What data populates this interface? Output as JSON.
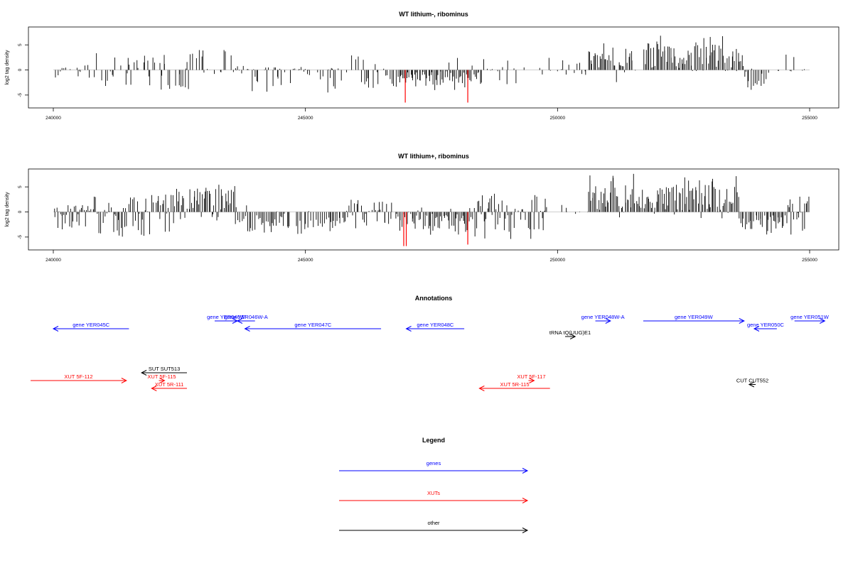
{
  "chart_data": [
    {
      "type": "bar",
      "title": "WT lithium-, ribominus",
      "xlabel": "",
      "ylabel": "log2 tag density",
      "xlim": [
        240000,
        255000
      ],
      "ylim": [
        -7,
        8
      ],
      "x_ticks": [
        240000,
        245000,
        250000,
        255000
      ],
      "y_ticks": [
        -5,
        0,
        5
      ],
      "grid": false,
      "colors": {
        "bars": "#000000",
        "highlight": "#ff0000",
        "baseline": "#bebebe"
      },
      "segments": [
        {
          "start": 240000,
          "end": 240600,
          "mode": "sparse",
          "max_pos": 0.5,
          "max_neg": 1.5,
          "density": 0.4
        },
        {
          "start": 240600,
          "end": 241500,
          "mode": "sparse",
          "max_pos": 3.5,
          "max_neg": 3.2,
          "density": 0.5
        },
        {
          "start": 241500,
          "end": 242700,
          "mode": "sparse",
          "max_pos": 3.2,
          "max_neg": 4.2,
          "density": 0.55
        },
        {
          "start": 242700,
          "end": 243800,
          "mode": "sparse",
          "max_pos": 4.0,
          "max_neg": 1.0,
          "density": 0.6
        },
        {
          "start": 243800,
          "end": 245800,
          "mode": "sparse",
          "max_pos": 0.6,
          "max_neg": 4.5,
          "density": 0.5
        },
        {
          "start": 245800,
          "end": 246800,
          "mode": "sparse",
          "max_pos": 3.0,
          "max_neg": 3.8,
          "density": 0.5
        },
        {
          "start": 246800,
          "end": 248500,
          "mode": "dense_neg",
          "max_pos": 2.5,
          "max_neg": 4.5,
          "density": 1.0
        },
        {
          "start": 248500,
          "end": 249300,
          "mode": "sparse",
          "max_pos": 2.5,
          "max_neg": 3.0,
          "density": 0.45
        },
        {
          "start": 249300,
          "end": 250600,
          "mode": "sparse",
          "max_pos": 2.5,
          "max_neg": 1.0,
          "density": 0.2
        },
        {
          "start": 250600,
          "end": 251500,
          "mode": "dense_pos",
          "max_pos": 6.0,
          "max_neg": 2.5,
          "density": 0.9
        },
        {
          "start": 251500,
          "end": 251700,
          "mode": "sparse",
          "max_pos": 1.5,
          "max_neg": 3.0,
          "density": 0.3
        },
        {
          "start": 251700,
          "end": 253700,
          "mode": "dense_pos",
          "max_pos": 7.5,
          "max_neg": 0.3,
          "density": 1.0
        },
        {
          "start": 253700,
          "end": 254200,
          "mode": "dense_neg",
          "max_pos": 0.3,
          "max_neg": 4.5,
          "density": 0.8
        },
        {
          "start": 254200,
          "end": 254800,
          "mode": "sparse",
          "max_pos": 3.5,
          "max_neg": 0.5,
          "density": 0.25
        },
        {
          "start": 254800,
          "end": 255000,
          "mode": "sparse",
          "max_pos": 1.0,
          "max_neg": 0.3,
          "density": 0.2
        }
      ],
      "highlight_bars": [
        {
          "x": 246980,
          "y": -6.5
        },
        {
          "x": 248220,
          "y": -6.5
        }
      ]
    },
    {
      "type": "bar",
      "title": "WT lithium+, ribominus",
      "xlabel": "",
      "ylabel": "log2 tag density",
      "xlim": [
        240000,
        255000
      ],
      "ylim": [
        -7,
        8
      ],
      "x_ticks": [
        240000,
        245000,
        250000,
        255000
      ],
      "y_ticks": [
        -5,
        0,
        5
      ],
      "grid": false,
      "colors": {
        "bars": "#000000",
        "highlight": "#ff0000",
        "baseline": "#bebebe"
      },
      "segments": [
        {
          "start": 240000,
          "end": 240800,
          "mode": "mixed",
          "max_pos": 1.5,
          "max_neg": 3.5,
          "density": 0.9
        },
        {
          "start": 240800,
          "end": 242400,
          "mode": "mixed",
          "max_pos": 3.5,
          "max_neg": 5.0,
          "density": 0.9
        },
        {
          "start": 242400,
          "end": 243600,
          "mode": "dense_pos",
          "max_pos": 6.5,
          "max_neg": 2.0,
          "density": 1.0
        },
        {
          "start": 243600,
          "end": 245800,
          "mode": "dense_neg",
          "max_pos": 1.5,
          "max_neg": 5.0,
          "density": 0.85
        },
        {
          "start": 245800,
          "end": 246800,
          "mode": "mixed",
          "max_pos": 2.5,
          "max_neg": 4.0,
          "density": 0.7
        },
        {
          "start": 246800,
          "end": 248400,
          "mode": "dense_neg",
          "max_pos": 1.5,
          "max_neg": 5.5,
          "density": 1.0
        },
        {
          "start": 248400,
          "end": 249800,
          "mode": "mixed",
          "max_pos": 4.0,
          "max_neg": 5.5,
          "density": 0.95
        },
        {
          "start": 249800,
          "end": 250600,
          "mode": "sparse",
          "max_pos": 1.5,
          "max_neg": 0.5,
          "density": 0.2
        },
        {
          "start": 250600,
          "end": 253600,
          "mode": "dense_pos",
          "max_pos": 8.0,
          "max_neg": 2.5,
          "density": 1.0
        },
        {
          "start": 253600,
          "end": 254500,
          "mode": "dense_neg",
          "max_pos": 1.0,
          "max_neg": 5.0,
          "density": 0.9
        },
        {
          "start": 254500,
          "end": 255000,
          "mode": "mixed",
          "max_pos": 3.5,
          "max_neg": 5.5,
          "density": 0.9
        }
      ],
      "highlight_bars": [
        {
          "x": 246950,
          "y": -6.8
        },
        {
          "x": 247000,
          "y": -6.8
        },
        {
          "x": 248220,
          "y": -6.5
        }
      ]
    }
  ],
  "annotations": {
    "title": "Annotations",
    "colors": {
      "genes": "#0000ff",
      "XUTs": "#ff0000",
      "other": "#000000"
    },
    "features": [
      {
        "label": "gene YER045C",
        "type": "genes",
        "start": 240000,
        "end": 241500,
        "strand": "-",
        "row": 1
      },
      {
        "label": "gene YER046W",
        "type": "genes",
        "start": 243200,
        "end": 243650,
        "strand": "+",
        "row": 0
      },
      {
        "label": "gene YER046W-A",
        "type": "genes",
        "start": 243650,
        "end": 244000,
        "strand": "-",
        "row": 0
      },
      {
        "label": "gene YER047C",
        "type": "genes",
        "start": 243800,
        "end": 246500,
        "strand": "-",
        "row": 1
      },
      {
        "label": "gene YER048C",
        "type": "genes",
        "start": 247000,
        "end": 248150,
        "strand": "-",
        "row": 1
      },
      {
        "label": "tRNA tQ(UUG)E1",
        "type": "other",
        "start": 250150,
        "end": 250350,
        "strand": "+",
        "row": 2
      },
      {
        "label": "gene YER048W-A",
        "type": "genes",
        "start": 250750,
        "end": 251050,
        "strand": "+",
        "row": 0
      },
      {
        "label": "gene YER049W",
        "type": "genes",
        "start": 251700,
        "end": 253700,
        "strand": "+",
        "row": 0
      },
      {
        "label": "gene YER050C",
        "type": "genes",
        "start": 253900,
        "end": 254350,
        "strand": "-",
        "row": 1
      },
      {
        "label": "gene YER051W",
        "type": "genes",
        "start": 254700,
        "end": 255300,
        "strand": "+",
        "row": 0
      },
      {
        "label": "SUT SUT513",
        "type": "other",
        "start": 241750,
        "end": 242650,
        "strand": "-",
        "row": 3
      },
      {
        "label": "XUT 5F-112",
        "type": "XUTs",
        "start": 239550,
        "end": 241450,
        "strand": "+",
        "row": 4
      },
      {
        "label": "XUT 5F-115",
        "type": "XUTs",
        "start": 242130,
        "end": 242170,
        "strand": "+",
        "row": 4
      },
      {
        "label": "XUT 5R-111",
        "type": "XUTs",
        "start": 241950,
        "end": 242650,
        "strand": "-",
        "row": 5
      },
      {
        "label": "XUT 5F-117",
        "type": "XUTs",
        "start": 249450,
        "end": 249510,
        "strand": "+",
        "row": 4
      },
      {
        "label": "XUT 5R-115",
        "type": "XUTs",
        "start": 248450,
        "end": 249850,
        "strand": "-",
        "row": 5
      },
      {
        "label": "CUT CUT552",
        "type": "other",
        "start": 253800,
        "end": 253930,
        "strand": "-",
        "row": 4.5
      }
    ]
  },
  "legend": {
    "title": "Legend",
    "items": [
      {
        "label": "genes",
        "color": "#0000ff"
      },
      {
        "label": "XUTs",
        "color": "#ff0000"
      },
      {
        "label": "other",
        "color": "#000000"
      }
    ]
  }
}
